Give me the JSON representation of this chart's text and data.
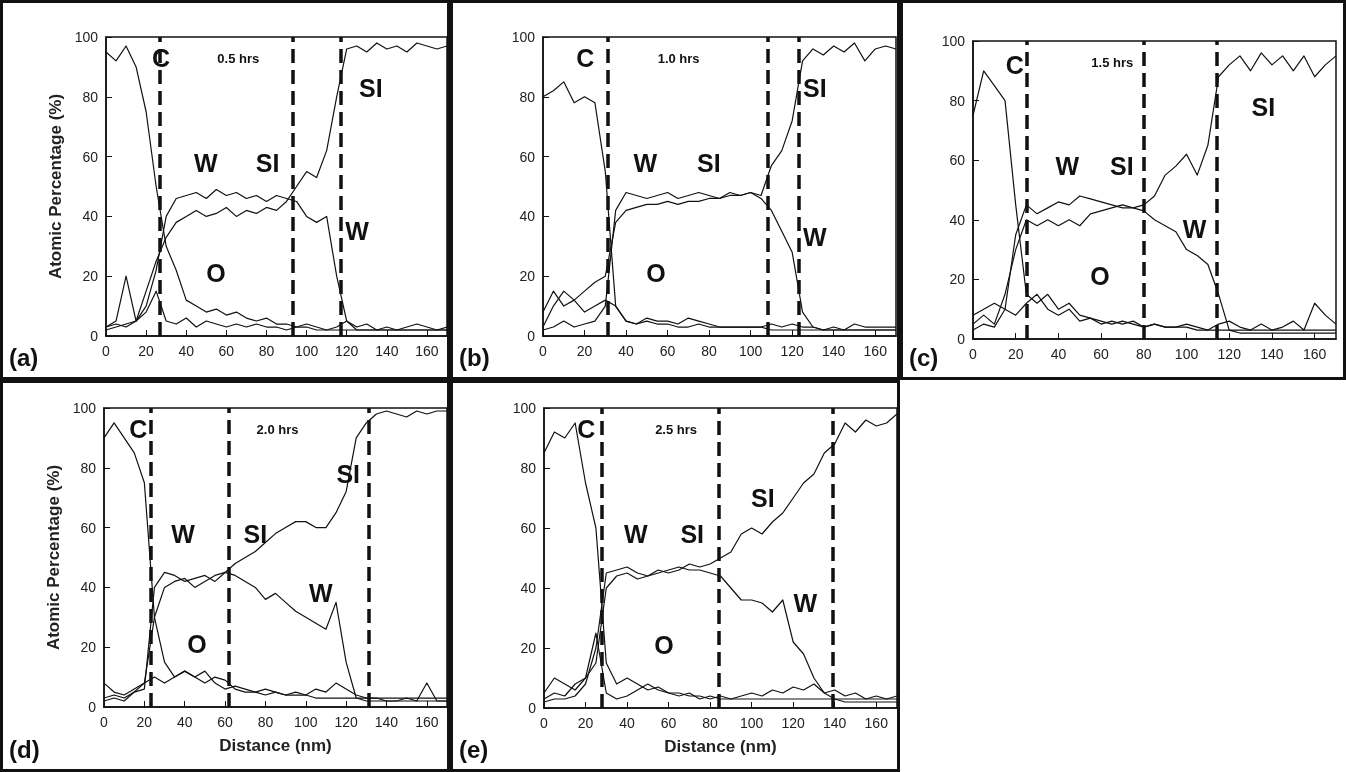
{
  "chart_data": [
    {
      "type": "line",
      "title": "0.5 hrs",
      "ylabel": "Atomic Percentage (%)",
      "x": [
        0,
        5,
        10,
        15,
        20,
        25,
        30,
        35,
        40,
        45,
        50,
        55,
        60,
        65,
        70,
        75,
        80,
        85,
        90,
        95,
        100,
        105,
        110,
        115,
        120,
        125,
        130,
        135,
        140,
        145,
        150,
        155,
        160,
        165,
        170
      ],
      "xlim": [
        0,
        170
      ],
      "xticks": [
        0,
        20,
        40,
        60,
        80,
        100,
        120,
        140,
        160
      ],
      "ylim": [
        0,
        100
      ],
      "yticks": [
        0,
        20,
        40,
        60,
        80,
        100
      ],
      "grid": false,
      "line_style": "solid",
      "series": [
        {
          "color": "#111111",
          "values": [
            95,
            92,
            97,
            90,
            75,
            50,
            30,
            22,
            12,
            10,
            8,
            9,
            7,
            8,
            6,
            5,
            6,
            4,
            4,
            3,
            3,
            2,
            2,
            2,
            2,
            2,
            2,
            2,
            2,
            2,
            2,
            2,
            2,
            2,
            2
          ]
        },
        {
          "color": "#111111",
          "values": [
            3,
            4,
            3,
            5,
            15,
            25,
            33,
            38,
            40,
            42,
            40,
            41,
            43,
            40,
            42,
            41,
            43,
            42,
            45,
            50,
            55,
            53,
            62,
            80,
            96,
            97,
            95,
            98,
            96,
            97,
            95,
            98,
            97,
            96,
            97
          ]
        },
        {
          "color": "#111111",
          "values": [
            2,
            3,
            4,
            5,
            10,
            22,
            40,
            46,
            47,
            48,
            46,
            49,
            47,
            48,
            46,
            47,
            45,
            47,
            46,
            45,
            40,
            38,
            40,
            20,
            5,
            2,
            2,
            2,
            2,
            2,
            2,
            2,
            2,
            2,
            2
          ]
        },
        {
          "color": "#111111",
          "values": [
            3,
            5,
            20,
            5,
            8,
            15,
            5,
            4,
            6,
            3,
            5,
            4,
            3,
            4,
            3,
            4,
            3,
            3,
            2,
            3,
            4,
            3,
            2,
            3,
            5,
            3,
            4,
            2,
            3,
            2,
            3,
            4,
            3,
            2,
            3
          ]
        }
      ],
      "ref_lines": [
        {
          "axis": "x",
          "value": 27,
          "color": "#111111",
          "line_style": "dashed"
        },
        {
          "axis": "x",
          "value": 93,
          "color": "#111111",
          "line_style": "dashed"
        },
        {
          "axis": "x",
          "value": 117,
          "color": "#111111",
          "line_style": "dashed"
        }
      ],
      "annotations": [
        "C",
        "W",
        "SI",
        "SI",
        "W",
        "O",
        "(a)"
      ]
    },
    {
      "type": "line",
      "title": "1.0 hrs",
      "x": [
        0,
        5,
        10,
        15,
        20,
        25,
        30,
        35,
        40,
        45,
        50,
        55,
        60,
        65,
        70,
        75,
        80,
        85,
        90,
        95,
        100,
        105,
        110,
        115,
        120,
        125,
        130,
        135,
        140,
        145,
        150,
        155,
        160,
        165,
        170
      ],
      "xlim": [
        0,
        170
      ],
      "xticks": [
        0,
        20,
        40,
        60,
        80,
        100,
        120,
        140,
        160
      ],
      "ylim": [
        0,
        100
      ],
      "yticks": [
        0,
        20,
        40,
        60,
        80,
        100
      ],
      "grid": false,
      "line_style": "solid",
      "series": [
        {
          "color": "#111111",
          "values": [
            80,
            82,
            85,
            78,
            80,
            78,
            55,
            10,
            5,
            4,
            5,
            4,
            4,
            3,
            3,
            4,
            3,
            3,
            3,
            3,
            3,
            3,
            2,
            2,
            2,
            2,
            2,
            2,
            2,
            2,
            2,
            2,
            2,
            2,
            2
          ]
        },
        {
          "color": "#111111",
          "values": [
            3,
            10,
            15,
            12,
            15,
            18,
            20,
            38,
            42,
            43,
            44,
            44,
            45,
            44,
            45,
            45,
            46,
            46,
            47,
            47,
            48,
            47,
            57,
            62,
            72,
            92,
            96,
            94,
            97,
            95,
            98,
            92,
            96,
            97,
            96
          ]
        },
        {
          "color": "#111111",
          "values": [
            2,
            3,
            5,
            3,
            4,
            5,
            10,
            42,
            48,
            47,
            46,
            47,
            48,
            46,
            47,
            48,
            47,
            46,
            48,
            47,
            48,
            46,
            42,
            35,
            28,
            8,
            3,
            2,
            2,
            2,
            2,
            2,
            2,
            2,
            2
          ]
        },
        {
          "color": "#111111",
          "values": [
            8,
            15,
            10,
            12,
            8,
            10,
            12,
            10,
            5,
            4,
            6,
            5,
            5,
            4,
            6,
            5,
            4,
            3,
            3,
            3,
            3,
            3,
            4,
            3,
            4,
            3,
            3,
            2,
            3,
            2,
            4,
            3,
            3,
            3,
            3
          ]
        }
      ],
      "ref_lines": [
        {
          "axis": "x",
          "value": 31,
          "color": "#111111",
          "line_style": "dashed"
        },
        {
          "axis": "x",
          "value": 108,
          "color": "#111111",
          "line_style": "dashed"
        },
        {
          "axis": "x",
          "value": 123,
          "color": "#111111",
          "line_style": "dashed"
        }
      ],
      "annotations": [
        "C",
        "W",
        "SI",
        "SI",
        "W",
        "O",
        "(b)"
      ]
    },
    {
      "type": "line",
      "title": "1.5 hrs",
      "x": [
        0,
        5,
        10,
        15,
        20,
        25,
        30,
        35,
        40,
        45,
        50,
        55,
        60,
        65,
        70,
        75,
        80,
        85,
        90,
        95,
        100,
        105,
        110,
        115,
        120,
        125,
        130,
        135,
        140,
        145,
        150,
        155,
        160,
        165,
        170
      ],
      "xlim": [
        0,
        170
      ],
      "xticks": [
        0,
        20,
        40,
        60,
        80,
        100,
        120,
        140,
        160
      ],
      "ylim": [
        0,
        100
      ],
      "yticks": [
        0,
        20,
        40,
        60,
        80,
        100
      ],
      "grid": false,
      "line_style": "solid",
      "series": [
        {
          "color": "#111111",
          "values": [
            75,
            90,
            85,
            80,
            45,
            15,
            12,
            15,
            10,
            12,
            8,
            7,
            6,
            5,
            6,
            5,
            4,
            5,
            4,
            4,
            4,
            3,
            3,
            3,
            3,
            3,
            3,
            3,
            3,
            3,
            3,
            3,
            3,
            3,
            3
          ]
        },
        {
          "color": "#111111",
          "values": [
            5,
            8,
            5,
            15,
            30,
            40,
            38,
            40,
            38,
            40,
            38,
            42,
            43,
            44,
            45,
            44,
            45,
            48,
            55,
            58,
            62,
            55,
            65,
            88,
            92,
            95,
            90,
            96,
            92,
            95,
            90,
            95,
            88,
            92,
            95
          ]
        },
        {
          "color": "#111111",
          "values": [
            3,
            5,
            4,
            10,
            35,
            45,
            42,
            44,
            46,
            45,
            48,
            47,
            46,
            45,
            44,
            44,
            43,
            40,
            38,
            36,
            30,
            28,
            25,
            15,
            3,
            2,
            2,
            2,
            2,
            2,
            2,
            2,
            2,
            2,
            2
          ]
        },
        {
          "color": "#111111",
          "values": [
            8,
            10,
            12,
            10,
            8,
            12,
            15,
            10,
            8,
            10,
            6,
            7,
            5,
            6,
            5,
            6,
            4,
            5,
            4,
            4,
            5,
            4,
            3,
            5,
            6,
            4,
            3,
            5,
            3,
            4,
            6,
            3,
            12,
            8,
            5
          ]
        }
      ],
      "ref_lines": [
        {
          "axis": "x",
          "value": 25,
          "color": "#111111",
          "line_style": "dashed"
        },
        {
          "axis": "x",
          "value": 80,
          "color": "#111111",
          "line_style": "dashed"
        },
        {
          "axis": "x",
          "value": 114,
          "color": "#111111",
          "line_style": "dashed"
        }
      ],
      "annotations": [
        "C",
        "W",
        "SI",
        "SI",
        "W",
        "O",
        "(c)"
      ]
    },
    {
      "type": "line",
      "title": "2.0 hrs",
      "xlabel": "Distance (nm)",
      "ylabel": "Atomic Percentage (%)",
      "x": [
        0,
        5,
        10,
        15,
        20,
        25,
        30,
        35,
        40,
        45,
        50,
        55,
        60,
        65,
        70,
        75,
        80,
        85,
        90,
        95,
        100,
        105,
        110,
        115,
        120,
        125,
        130,
        135,
        140,
        145,
        150,
        155,
        160,
        165,
        170
      ],
      "xlim": [
        0,
        170
      ],
      "xticks": [
        0,
        20,
        40,
        60,
        80,
        100,
        120,
        140,
        160
      ],
      "ylim": [
        0,
        100
      ],
      "yticks": [
        0,
        20,
        40,
        60,
        80,
        100
      ],
      "grid": false,
      "line_style": "solid",
      "series": [
        {
          "color": "#111111",
          "values": [
            90,
            95,
            90,
            85,
            75,
            30,
            15,
            10,
            12,
            10,
            8,
            10,
            9,
            6,
            5,
            5,
            4,
            5,
            4,
            4,
            4,
            3,
            3,
            3,
            3,
            3,
            3,
            3,
            3,
            3,
            3,
            3,
            3,
            3,
            3
          ]
        },
        {
          "color": "#111111",
          "values": [
            3,
            4,
            3,
            5,
            8,
            30,
            40,
            42,
            43,
            40,
            42,
            44,
            45,
            48,
            50,
            52,
            55,
            58,
            60,
            62,
            62,
            60,
            60,
            65,
            72,
            90,
            95,
            98,
            99,
            98,
            97,
            99,
            98,
            99,
            99
          ]
        },
        {
          "color": "#111111",
          "values": [
            2,
            3,
            2,
            5,
            6,
            40,
            45,
            44,
            42,
            43,
            44,
            42,
            45,
            44,
            42,
            40,
            36,
            38,
            35,
            32,
            30,
            28,
            26,
            35,
            15,
            3,
            2,
            2,
            2,
            2,
            2,
            2,
            2,
            2,
            2
          ]
        },
        {
          "color": "#111111",
          "values": [
            8,
            5,
            4,
            6,
            8,
            10,
            8,
            10,
            12,
            10,
            12,
            8,
            6,
            7,
            6,
            5,
            6,
            5,
            4,
            5,
            4,
            6,
            5,
            8,
            6,
            4,
            3,
            3,
            2,
            2,
            3,
            2,
            8,
            2,
            2
          ]
        }
      ],
      "ref_lines": [
        {
          "axis": "x",
          "value": 23,
          "color": "#111111",
          "line_style": "dashed"
        },
        {
          "axis": "x",
          "value": 62,
          "color": "#111111",
          "line_style": "dashed"
        },
        {
          "axis": "x",
          "value": 131,
          "color": "#111111",
          "line_style": "dashed"
        }
      ],
      "annotations": [
        "C",
        "W",
        "SI",
        "SI",
        "W",
        "O",
        "(d)"
      ]
    },
    {
      "type": "line",
      "title": "2.5 hrs",
      "xlabel": "Distance (nm)",
      "x": [
        0,
        5,
        10,
        15,
        20,
        25,
        30,
        35,
        40,
        45,
        50,
        55,
        60,
        65,
        70,
        75,
        80,
        85,
        90,
        95,
        100,
        105,
        110,
        115,
        120,
        125,
        130,
        135,
        140,
        145,
        150,
        155,
        160,
        165,
        170
      ],
      "xlim": [
        0,
        170
      ],
      "xticks": [
        0,
        20,
        40,
        60,
        80,
        100,
        120,
        140,
        160
      ],
      "ylim": [
        0,
        100
      ],
      "yticks": [
        0,
        20,
        40,
        60,
        80,
        100
      ],
      "grid": false,
      "line_style": "solid",
      "series": [
        {
          "color": "#111111",
          "values": [
            85,
            92,
            90,
            95,
            75,
            60,
            15,
            8,
            10,
            8,
            6,
            7,
            5,
            5,
            4,
            4,
            3,
            4,
            3,
            3,
            3,
            3,
            3,
            3,
            3,
            3,
            3,
            3,
            3,
            3,
            3,
            3,
            3,
            3,
            3
          ]
        },
        {
          "color": "#111111",
          "values": [
            3,
            5,
            4,
            8,
            10,
            15,
            40,
            44,
            45,
            43,
            44,
            46,
            45,
            46,
            48,
            47,
            48,
            50,
            52,
            58,
            60,
            58,
            62,
            65,
            70,
            75,
            78,
            85,
            88,
            95,
            92,
            96,
            94,
            95,
            98
          ]
        },
        {
          "color": "#111111",
          "values": [
            2,
            3,
            3,
            4,
            8,
            20,
            45,
            46,
            47,
            45,
            44,
            45,
            46,
            47,
            46,
            46,
            45,
            44,
            40,
            36,
            36,
            35,
            32,
            36,
            22,
            18,
            10,
            5,
            3,
            2,
            2,
            2,
            2,
            2,
            2
          ]
        },
        {
          "color": "#111111",
          "values": [
            5,
            10,
            8,
            6,
            10,
            25,
            5,
            3,
            4,
            6,
            8,
            6,
            5,
            4,
            5,
            3,
            4,
            3,
            3,
            4,
            5,
            4,
            6,
            5,
            7,
            6,
            8,
            5,
            6,
            4,
            5,
            3,
            4,
            3,
            4
          ]
        }
      ],
      "ref_lines": [
        {
          "axis": "x",
          "value": 28,
          "color": "#111111",
          "line_style": "dashed"
        },
        {
          "axis": "x",
          "value": 84,
          "color": "#111111",
          "line_style": "dashed"
        },
        {
          "axis": "x",
          "value": 139,
          "color": "#111111",
          "line_style": "dashed"
        }
      ],
      "annotations": [
        "C",
        "W",
        "SI",
        "SI",
        "W",
        "O",
        "(e)"
      ]
    }
  ]
}
